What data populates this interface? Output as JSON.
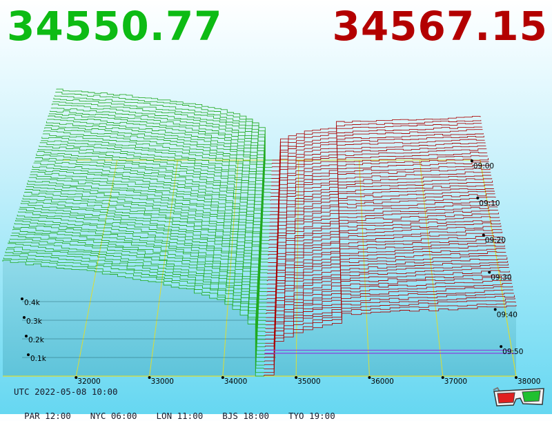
{
  "prices": {
    "bid": "34550.77",
    "ask": "34567.15"
  },
  "colors": {
    "bid": "#0dbb14",
    "ask": "#b30000",
    "bid_line": "#22aa22",
    "ask_line": "#aa0000",
    "axis": "#dddd33",
    "baseline": "#8844dd"
  },
  "chart_data": {
    "type": "area",
    "title": "",
    "x_axis": {
      "label": "",
      "ticks": [
        32000,
        33000,
        34000,
        35000,
        36000,
        37000,
        38000
      ],
      "range": [
        31000,
        38000
      ]
    },
    "z_axis": {
      "label": "",
      "ticks": [
        0.1,
        0.2,
        0.3,
        0.4
      ],
      "tick_labels": [
        "0.1k",
        "0.2k",
        "0.3k",
        "0.4k"
      ],
      "range": [
        0,
        0.45
      ]
    },
    "time_axis": {
      "label": "",
      "ticks": [
        "09:00",
        "09:10",
        "09:20",
        "09:30",
        "09:40",
        "09:50"
      ]
    },
    "series": [
      {
        "side": "bid",
        "price_range": [
          31000,
          34550.77
        ],
        "depth_at_far_edge": 0.62,
        "depth_at_mid": 0.4
      },
      {
        "side": "ask",
        "price_range": [
          34567.15,
          38000
        ],
        "depth_at_far_edge": 0.38,
        "depth_at_mid": 0.2
      }
    ],
    "grid": true
  },
  "footer": {
    "utc": "UTC 2022-05-08 10:00",
    "cities": [
      {
        "label": "PAR 12:00"
      },
      {
        "label": "NYC 06:00"
      },
      {
        "label": "LON 11:00"
      },
      {
        "label": "BJS 18:00"
      },
      {
        "label": "TYO 19:00"
      }
    ]
  },
  "icons": {
    "glasses": "3d-glasses-icon"
  }
}
